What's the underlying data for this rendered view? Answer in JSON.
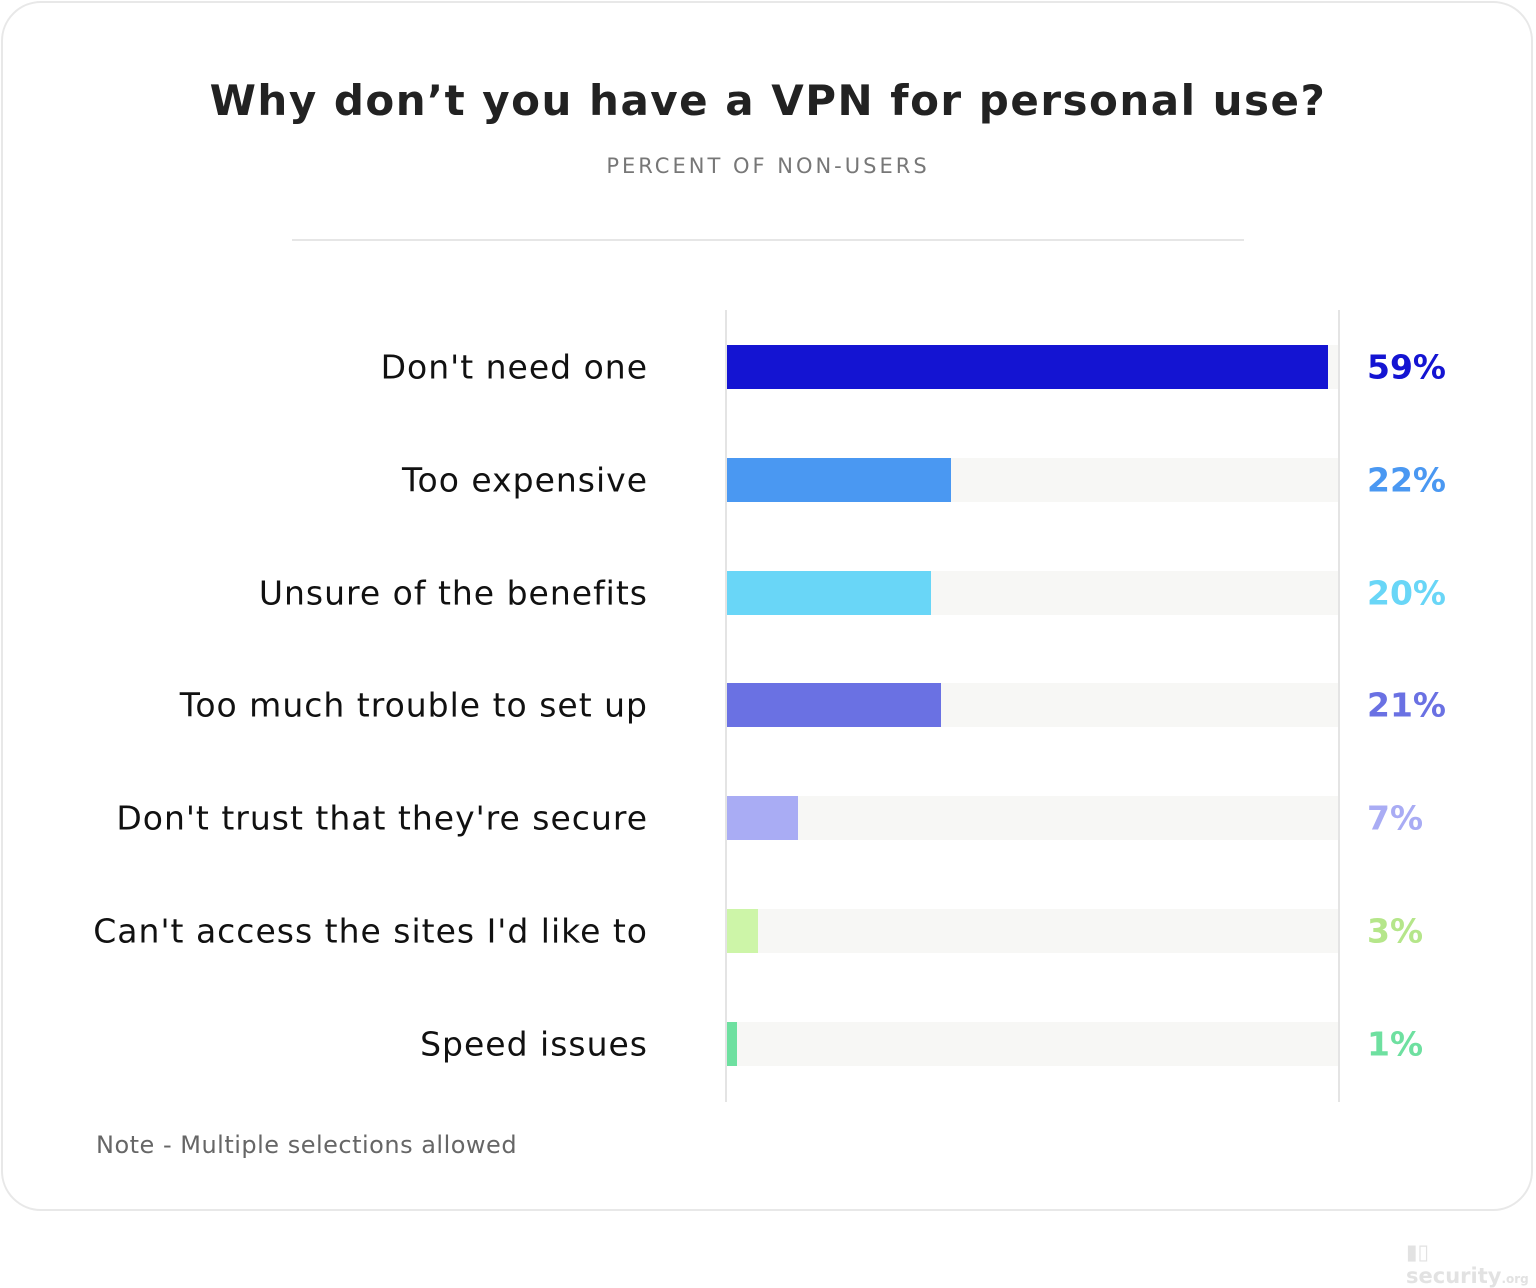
{
  "chart_data": {
    "type": "bar",
    "orientation": "horizontal",
    "title": "Why don’t you have a VPN for personal use?",
    "subtitle": "PERCENT OF NON-USERS",
    "categories": [
      "Don't need one",
      "Too expensive",
      "Unsure of the benefits",
      "Too much trouble to set up",
      "Don't trust that they're secure",
      "Can't access the sites I'd like to",
      "Speed issues"
    ],
    "values": [
      59,
      22,
      20,
      21,
      7,
      3,
      1
    ],
    "value_labels": [
      "59%",
      "22%",
      "20%",
      "21%",
      "7%",
      "3%",
      "1%"
    ],
    "colors": [
      "#1414d2",
      "#4a98f2",
      "#69d6f7",
      "#6a71e3",
      "#a9acf4",
      "#cdf5a8",
      "#6ee0a0"
    ],
    "label_colors": [
      "#1414d2",
      "#4a98f2",
      "#69d6f7",
      "#6a71e3",
      "#a9acf4",
      "#b5e68a",
      "#6ee0a0"
    ],
    "xlim": [
      0,
      60
    ],
    "grid": false,
    "note": "Note - Multiple selections allowed"
  },
  "brand": {
    "logo": "security.org"
  }
}
